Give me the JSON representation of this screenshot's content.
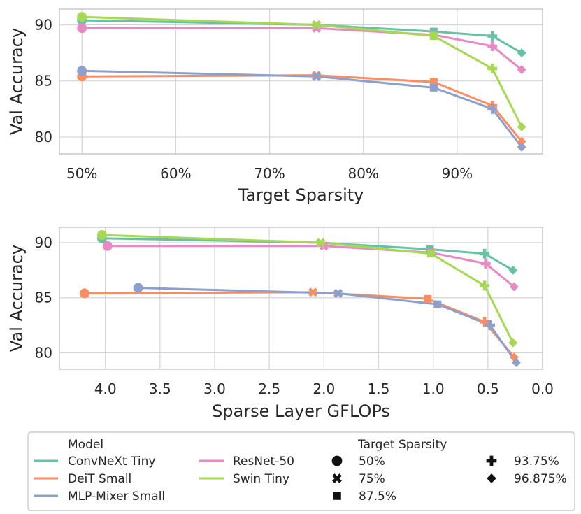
{
  "chart_data": [
    {
      "type": "line",
      "xlabel": "Target Sparsity",
      "ylabel": "Val Accuracy",
      "xlim": [
        47.6,
        99.1
      ],
      "ylim": [
        78.5,
        91.4
      ],
      "x_ticks": [
        50,
        60,
        70,
        80,
        90
      ],
      "x_tick_labels": [
        "50%",
        "60%",
        "70%",
        "80%",
        "90%"
      ],
      "y_ticks": [
        80,
        85,
        90
      ],
      "y_tick_labels": [
        "80",
        "85",
        "90"
      ],
      "grid": true,
      "series": [
        {
          "name": "ConvNeXt Tiny",
          "x": [
            50,
            75,
            87.5,
            93.75,
            96.875
          ],
          "y": [
            90.4,
            90.0,
            89.4,
            89.0,
            87.5
          ]
        },
        {
          "name": "DeiT Small",
          "x": [
            50,
            75,
            87.5,
            93.75,
            96.875
          ],
          "y": [
            85.4,
            85.5,
            84.9,
            82.8,
            79.6
          ]
        },
        {
          "name": "MLP-Mixer Small",
          "x": [
            50,
            75,
            87.5,
            93.75,
            96.875
          ],
          "y": [
            85.9,
            85.4,
            84.4,
            82.5,
            79.1
          ]
        },
        {
          "name": "ResNet-50",
          "x": [
            50,
            75,
            87.5,
            93.75,
            96.875
          ],
          "y": [
            89.7,
            89.7,
            89.1,
            88.1,
            86.0
          ]
        },
        {
          "name": "Swin Tiny",
          "x": [
            50,
            75,
            87.5,
            93.75,
            96.875
          ],
          "y": [
            90.7,
            90.0,
            89.0,
            86.1,
            80.9
          ]
        }
      ]
    },
    {
      "type": "line",
      "xlabel": "Sparse Layer GFLOPs",
      "ylabel": "Val Accuracy",
      "xlim": [
        4.42,
        0.0
      ],
      "x_inverted": true,
      "ylim": [
        78.5,
        91.4
      ],
      "x_ticks": [
        4.0,
        3.5,
        3.0,
        2.5,
        2.0,
        1.5,
        1.0,
        0.5,
        0.0
      ],
      "x_tick_labels": [
        "4.0",
        "3.5",
        "3.0",
        "2.5",
        "2.0",
        "1.5",
        "1.0",
        "0.5",
        "0.0"
      ],
      "y_ticks": [
        80,
        85,
        90
      ],
      "y_tick_labels": [
        "80",
        "85",
        "90"
      ],
      "grid": true,
      "series": [
        {
          "name": "ConvNeXt Tiny",
          "x": [
            4.03,
            2.03,
            1.03,
            0.53,
            0.27
          ],
          "y": [
            90.4,
            90.0,
            89.4,
            89.0,
            87.5
          ]
        },
        {
          "name": "DeiT Small",
          "x": [
            4.19,
            2.1,
            1.05,
            0.53,
            0.26
          ],
          "y": [
            85.4,
            85.5,
            84.9,
            82.8,
            79.6
          ]
        },
        {
          "name": "MLP-Mixer Small",
          "x": [
            3.7,
            1.87,
            0.96,
            0.48,
            0.24
          ],
          "y": [
            85.9,
            85.4,
            84.4,
            82.5,
            79.1
          ]
        },
        {
          "name": "ResNet-50",
          "x": [
            3.98,
            2.0,
            1.02,
            0.52,
            0.26
          ],
          "y": [
            89.7,
            89.7,
            89.1,
            88.1,
            86.0
          ]
        },
        {
          "name": "Swin Tiny",
          "x": [
            4.03,
            2.03,
            1.02,
            0.53,
            0.27
          ],
          "y": [
            90.7,
            90.0,
            89.0,
            86.1,
            80.9
          ]
        }
      ]
    }
  ],
  "marker_by_sparsity": [
    "circle",
    "x",
    "square",
    "plus",
    "diamond"
  ],
  "colors": {
    "ConvNeXt Tiny": "#66c2a5",
    "DeiT Small": "#fc8d62",
    "MLP-Mixer Small": "#8da0cb",
    "ResNet-50": "#e78ac3",
    "Swin Tiny": "#a6d854"
  },
  "legend": {
    "model_title": "Model",
    "models": [
      "ConvNeXt Tiny",
      "DeiT Small",
      "MLP-Mixer Small",
      "ResNet-50",
      "Swin Tiny"
    ],
    "sparsity_title": "Target Sparsity",
    "sparsities": [
      {
        "label": "50%",
        "marker": "circle"
      },
      {
        "label": "75%",
        "marker": "x"
      },
      {
        "label": "87.5%",
        "marker": "square"
      },
      {
        "label": "93.75%",
        "marker": "plus"
      },
      {
        "label": "96.875%",
        "marker": "diamond"
      }
    ]
  }
}
